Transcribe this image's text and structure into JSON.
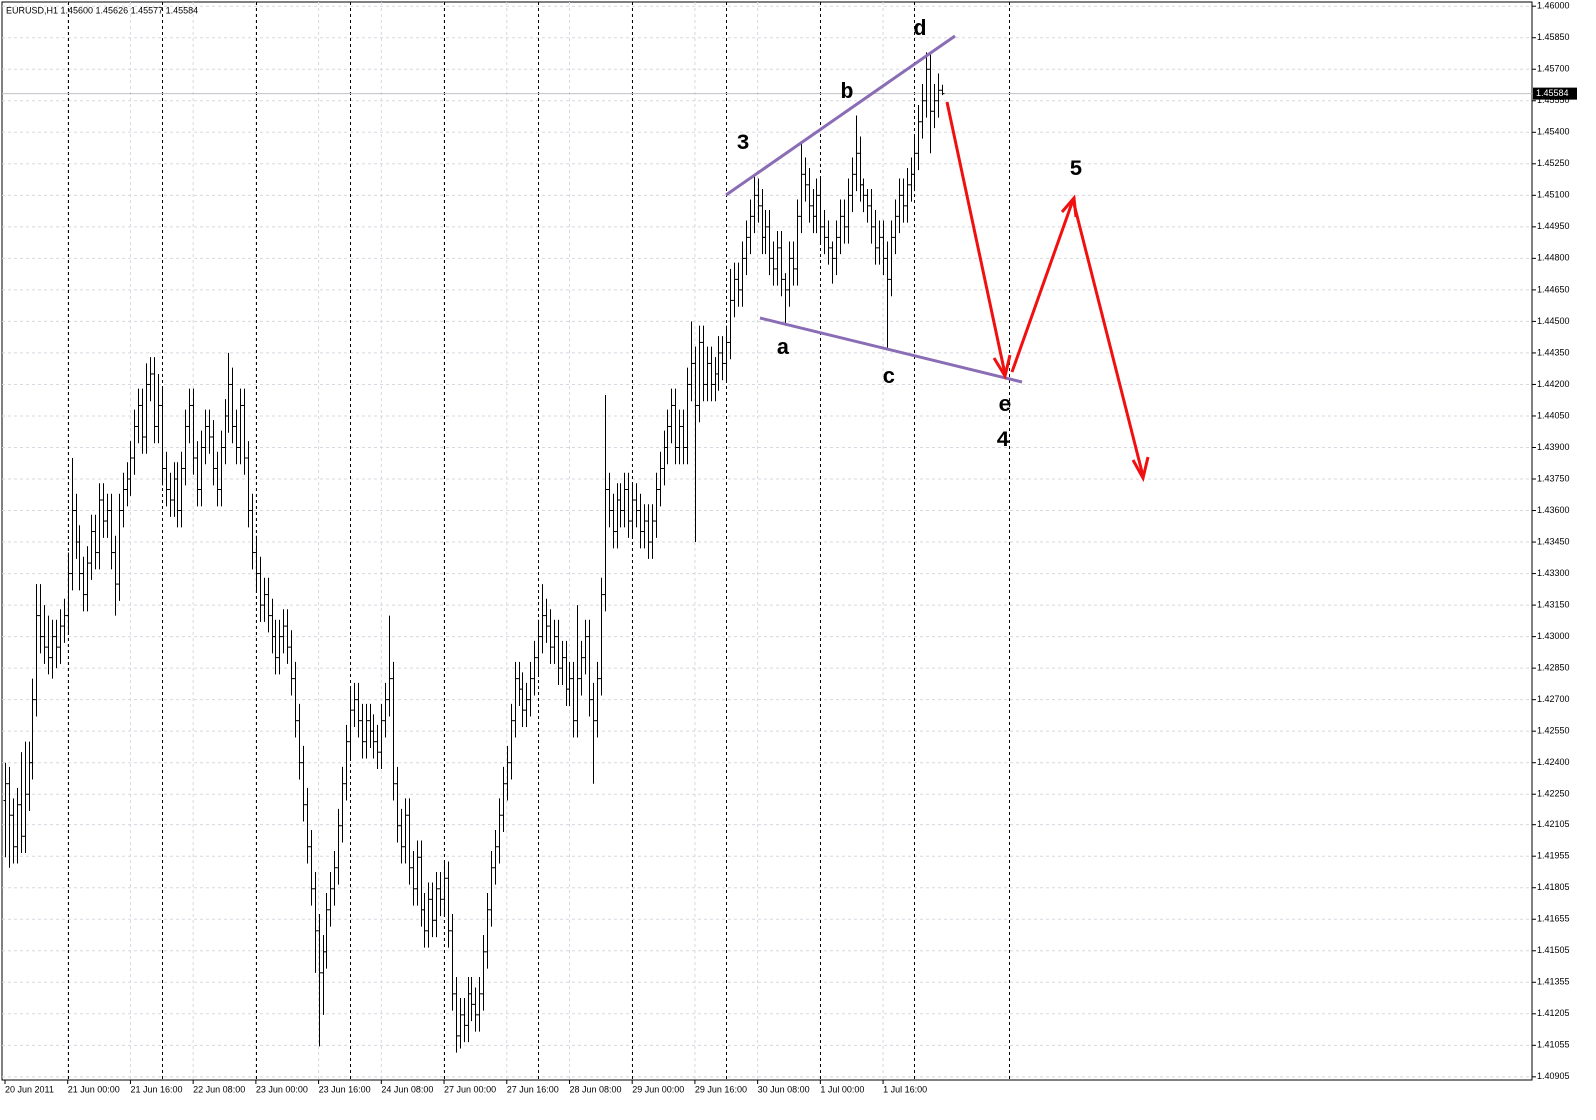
{
  "chart_data": {
    "type": "ohlc",
    "title": "EURUSD,H1  1.45600 1.45626 1.45577 1.45584",
    "color": "#000000",
    "open": [
      1.4222,
      1.423,
      1.4215,
      1.42,
      1.422,
      1.4205,
      1.4225,
      1.424,
      1.427,
      1.431,
      1.43,
      1.4295,
      1.429,
      1.43,
      1.4295,
      1.4305,
      1.431,
      1.433,
      1.436,
      1.4345,
      1.433,
      1.432,
      1.4335,
      1.435,
      1.434,
      1.4365,
      1.4355,
      1.436,
      1.434,
      1.4325,
      1.436,
      1.437,
      1.4375,
      1.4385,
      1.44,
      1.441,
      1.4395,
      1.442,
      1.4425,
      1.44,
      1.441,
      1.438,
      1.437,
      1.4365,
      1.4375,
      1.436,
      1.438,
      1.44,
      1.441,
      1.4385,
      1.437,
      1.439,
      1.44,
      1.4395,
      1.438,
      1.437,
      1.439,
      1.4405,
      1.442,
      1.44,
      1.439,
      1.441,
      1.4385,
      1.436,
      1.434,
      1.433,
      1.4315,
      1.432,
      1.431,
      1.43,
      1.429,
      1.43,
      1.4305,
      1.4295,
      1.428,
      1.426,
      1.424,
      1.422,
      1.42,
      1.418,
      1.416,
      1.414,
      1.415,
      1.417,
      1.418,
      1.419,
      1.421,
      1.423,
      1.425,
      1.4265,
      1.427,
      1.426,
      1.425,
      1.426,
      1.4255,
      1.425,
      1.4245,
      1.426,
      1.427,
      1.428,
      1.423,
      1.421,
      1.42,
      1.4215,
      1.419,
      1.418,
      1.4195,
      1.417,
      1.416,
      1.4175,
      1.4165,
      1.418,
      1.4175,
      1.4185,
      1.416,
      1.413,
      1.411,
      1.412,
      1.4115,
      1.413,
      1.4125,
      1.412,
      1.413,
      1.415,
      1.417,
      1.419,
      1.42,
      1.4215,
      1.423,
      1.424,
      1.426,
      1.428,
      1.4275,
      1.4265,
      1.427,
      1.428,
      1.429,
      1.43,
      1.431,
      1.4305,
      1.4295,
      1.43,
      1.4285,
      1.429,
      1.4275,
      1.428,
      1.426,
      1.428,
      1.429,
      1.43,
      1.427,
      1.426,
      1.428,
      1.432,
      1.437,
      1.436,
      1.435,
      1.4365,
      1.436,
      1.437,
      1.4355,
      1.4365,
      1.436,
      1.435,
      1.4355,
      1.4345,
      1.4355,
      1.437,
      1.438,
      1.439,
      1.44,
      1.441,
      1.439,
      1.44,
      1.439,
      1.442,
      1.443,
      1.441,
      1.444,
      1.442,
      1.443,
      1.442,
      1.4425,
      1.4435,
      1.443,
      1.444,
      1.446,
      1.447,
      1.4465,
      1.448,
      1.449,
      1.45,
      1.451,
      1.4505,
      1.449,
      1.4495,
      1.448,
      1.4475,
      1.4485,
      1.447,
      1.4465,
      1.448,
      1.4475,
      1.45,
      1.452,
      1.4515,
      1.4505,
      1.45,
      1.451,
      1.4495,
      1.449,
      1.4485,
      1.448,
      1.449,
      1.45,
      1.4495,
      1.451,
      1.452,
      1.453,
      1.4515,
      1.451,
      1.4505,
      1.4495,
      1.4485,
      1.449,
      1.448,
      1.447,
      1.449,
      1.45,
      1.451,
      1.4505,
      1.4515,
      1.452,
      1.453,
      1.4545,
      1.4555,
      1.457,
      1.455,
      1.4555,
      1.456
    ],
    "high": [
      1.424,
      1.4238,
      1.4223,
      1.4228,
      1.4245,
      1.425,
      1.425,
      1.428,
      1.4325,
      1.4325,
      1.4315,
      1.431,
      1.4308,
      1.4308,
      1.4313,
      1.4318,
      1.434,
      1.4385,
      1.4368,
      1.4353,
      1.4338,
      1.4343,
      1.4358,
      1.4358,
      1.4373,
      1.4373,
      1.4368,
      1.4368,
      1.4348,
      1.4368,
      1.4378,
      1.4383,
      1.4393,
      1.4408,
      1.4418,
      1.4418,
      1.443,
      1.4433,
      1.4433,
      1.4425,
      1.4418,
      1.4388,
      1.4378,
      1.4383,
      1.4383,
      1.4388,
      1.4408,
      1.4418,
      1.4418,
      1.4393,
      1.4398,
      1.4408,
      1.4408,
      1.4403,
      1.4388,
      1.4398,
      1.4413,
      1.4435,
      1.4428,
      1.4408,
      1.4418,
      1.4418,
      1.4393,
      1.4368,
      1.4348,
      1.4338,
      1.4328,
      1.4328,
      1.4318,
      1.4308,
      1.4308,
      1.4313,
      1.4313,
      1.4303,
      1.4288,
      1.4268,
      1.4248,
      1.4228,
      1.4208,
      1.4188,
      1.4168,
      1.4158,
      1.4178,
      1.4188,
      1.4198,
      1.4218,
      1.4238,
      1.4258,
      1.4275,
      1.4278,
      1.4278,
      1.4268,
      1.4268,
      1.4268,
      1.4263,
      1.4258,
      1.4268,
      1.4278,
      1.431,
      1.4288,
      1.4238,
      1.4218,
      1.4223,
      1.4223,
      1.4198,
      1.4203,
      1.4203,
      1.4178,
      1.4183,
      1.4183,
      1.4188,
      1.4188,
      1.4193,
      1.4193,
      1.4168,
      1.4138,
      1.4128,
      1.4128,
      1.4138,
      1.4138,
      1.4133,
      1.4138,
      1.4158,
      1.4178,
      1.4198,
      1.4208,
      1.4223,
      1.4238,
      1.4248,
      1.4268,
      1.4288,
      1.4288,
      1.4283,
      1.4278,
      1.4288,
      1.4298,
      1.4308,
      1.4325,
      1.4318,
      1.4313,
      1.4308,
      1.4308,
      1.4298,
      1.4298,
      1.4288,
      1.4288,
      1.4315,
      1.4298,
      1.4308,
      1.4308,
      1.4278,
      1.4288,
      1.4328,
      1.4415,
      1.4378,
      1.4368,
      1.4373,
      1.4373,
      1.4378,
      1.4378,
      1.4373,
      1.4373,
      1.4368,
      1.4363,
      1.4363,
      1.4363,
      1.4378,
      1.4388,
      1.4398,
      1.4408,
      1.4418,
      1.4418,
      1.4408,
      1.4408,
      1.4428,
      1.445,
      1.4438,
      1.4448,
      1.4448,
      1.4438,
      1.4438,
      1.4433,
      1.4443,
      1.4443,
      1.4448,
      1.4475,
      1.4478,
      1.4478,
      1.4488,
      1.4498,
      1.4508,
      1.452,
      1.4518,
      1.4513,
      1.4503,
      1.4503,
      1.4488,
      1.4493,
      1.4493,
      1.4473,
      1.4488,
      1.4488,
      1.4508,
      1.4535,
      1.4528,
      1.4523,
      1.4513,
      1.4518,
      1.4518,
      1.4503,
      1.4498,
      1.4488,
      1.4498,
      1.4508,
      1.4508,
      1.4518,
      1.4528,
      1.4548,
      1.4538,
      1.4518,
      1.4513,
      1.4513,
      1.4503,
      1.4498,
      1.4498,
      1.4488,
      1.4498,
      1.4508,
      1.4518,
      1.4518,
      1.4523,
      1.4528,
      1.4538,
      1.4553,
      1.4563,
      1.4578,
      1.4578,
      1.4563,
      1.4568,
      1.45626
    ],
    "low": [
      1.4195,
      1.419,
      1.4192,
      1.4192,
      1.4197,
      1.4197,
      1.4217,
      1.4232,
      1.4262,
      1.4292,
      1.4287,
      1.4282,
      1.428,
      1.4285,
      1.4287,
      1.4297,
      1.4302,
      1.4322,
      1.4337,
      1.4322,
      1.4312,
      1.4312,
      1.4327,
      1.4332,
      1.4332,
      1.4347,
      1.4347,
      1.4332,
      1.431,
      1.4317,
      1.4352,
      1.4362,
      1.4367,
      1.4377,
      1.4392,
      1.4387,
      1.4387,
      1.4412,
      1.4392,
      1.4392,
      1.4372,
      1.4362,
      1.4357,
      1.4357,
      1.4352,
      1.4352,
      1.4372,
      1.4392,
      1.4377,
      1.4362,
      1.4362,
      1.4382,
      1.4387,
      1.4372,
      1.4362,
      1.4362,
      1.4382,
      1.4397,
      1.4392,
      1.4382,
      1.4382,
      1.4377,
      1.4352,
      1.4332,
      1.4322,
      1.4307,
      1.4307,
      1.4302,
      1.4292,
      1.4282,
      1.4282,
      1.4292,
      1.4287,
      1.4272,
      1.4252,
      1.4232,
      1.4212,
      1.4192,
      1.4172,
      1.414,
      1.4105,
      1.412,
      1.4142,
      1.4162,
      1.4172,
      1.4182,
      1.4202,
      1.4222,
      1.4242,
      1.4257,
      1.4252,
      1.4242,
      1.4242,
      1.4247,
      1.4242,
      1.4237,
      1.4237,
      1.4252,
      1.4262,
      1.4222,
      1.4202,
      1.4192,
      1.4192,
      1.4182,
      1.4172,
      1.4172,
      1.4162,
      1.4152,
      1.4152,
      1.4157,
      1.4157,
      1.4167,
      1.4167,
      1.4152,
      1.4122,
      1.4102,
      1.4104,
      1.4107,
      1.4107,
      1.4117,
      1.4112,
      1.4112,
      1.4122,
      1.4142,
      1.4162,
      1.4182,
      1.4192,
      1.4207,
      1.4222,
      1.4232,
      1.4252,
      1.4267,
      1.4257,
      1.4257,
      1.4262,
      1.4272,
      1.4282,
      1.4292,
      1.4297,
      1.4287,
      1.4287,
      1.4277,
      1.4277,
      1.4267,
      1.4267,
      1.4252,
      1.4252,
      1.4272,
      1.4282,
      1.4262,
      1.423,
      1.4252,
      1.4272,
      1.4312,
      1.4352,
      1.4342,
      1.4342,
      1.4352,
      1.4352,
      1.4347,
      1.4347,
      1.4352,
      1.4342,
      1.4342,
      1.4337,
      1.4337,
      1.4347,
      1.4362,
      1.4372,
      1.4382,
      1.4392,
      1.4382,
      1.4382,
      1.4382,
      1.4382,
      1.4412,
      1.4345,
      1.4402,
      1.4412,
      1.4412,
      1.4412,
      1.4412,
      1.4417,
      1.4422,
      1.4422,
      1.4432,
      1.4452,
      1.4457,
      1.4457,
      1.4472,
      1.4482,
      1.4492,
      1.4497,
      1.4482,
      1.4482,
      1.4472,
      1.4467,
      1.4467,
      1.4462,
      1.4448,
      1.4457,
      1.4467,
      1.4467,
      1.4492,
      1.4507,
      1.4497,
      1.4492,
      1.4492,
      1.4487,
      1.4482,
      1.4477,
      1.4468,
      1.4472,
      1.4482,
      1.4487,
      1.4487,
      1.4502,
      1.4512,
      1.4507,
      1.4502,
      1.4497,
      1.4487,
      1.4477,
      1.4477,
      1.4472,
      1.4437,
      1.4462,
      1.4482,
      1.4492,
      1.4497,
      1.4497,
      1.4507,
      1.4512,
      1.4522,
      1.4537,
      1.4547,
      1.453,
      1.4542,
      1.4547,
      1.45577
    ],
    "close": [
      1.423,
      1.4215,
      1.42,
      1.422,
      1.4205,
      1.4225,
      1.424,
      1.427,
      1.431,
      1.43,
      1.4295,
      1.429,
      1.43,
      1.4295,
      1.4305,
      1.431,
      1.433,
      1.436,
      1.4345,
      1.433,
      1.432,
      1.4335,
      1.435,
      1.434,
      1.4365,
      1.4355,
      1.436,
      1.434,
      1.4325,
      1.436,
      1.437,
      1.4375,
      1.4385,
      1.44,
      1.441,
      1.4395,
      1.442,
      1.4425,
      1.44,
      1.441,
      1.438,
      1.437,
      1.4365,
      1.4375,
      1.436,
      1.438,
      1.44,
      1.441,
      1.4385,
      1.437,
      1.439,
      1.44,
      1.4395,
      1.438,
      1.437,
      1.439,
      1.4405,
      1.442,
      1.44,
      1.439,
      1.441,
      1.4385,
      1.436,
      1.434,
      1.433,
      1.4315,
      1.432,
      1.431,
      1.43,
      1.429,
      1.43,
      1.4305,
      1.4295,
      1.428,
      1.426,
      1.424,
      1.422,
      1.42,
      1.418,
      1.416,
      1.414,
      1.415,
      1.417,
      1.418,
      1.419,
      1.421,
      1.423,
      1.425,
      1.4265,
      1.427,
      1.426,
      1.425,
      1.426,
      1.4255,
      1.425,
      1.4245,
      1.426,
      1.427,
      1.428,
      1.423,
      1.421,
      1.42,
      1.4215,
      1.419,
      1.418,
      1.4195,
      1.417,
      1.416,
      1.4175,
      1.4165,
      1.418,
      1.4175,
      1.4185,
      1.416,
      1.413,
      1.411,
      1.412,
      1.4115,
      1.413,
      1.4125,
      1.412,
      1.413,
      1.415,
      1.417,
      1.419,
      1.42,
      1.4215,
      1.423,
      1.424,
      1.426,
      1.428,
      1.4275,
      1.4265,
      1.427,
      1.428,
      1.429,
      1.43,
      1.431,
      1.4305,
      1.4295,
      1.43,
      1.4285,
      1.429,
      1.4275,
      1.428,
      1.426,
      1.428,
      1.429,
      1.43,
      1.427,
      1.426,
      1.428,
      1.432,
      1.437,
      1.436,
      1.435,
      1.4365,
      1.436,
      1.437,
      1.4355,
      1.4365,
      1.436,
      1.435,
      1.4355,
      1.4345,
      1.4355,
      1.437,
      1.438,
      1.439,
      1.44,
      1.441,
      1.439,
      1.44,
      1.439,
      1.442,
      1.443,
      1.441,
      1.444,
      1.442,
      1.443,
      1.442,
      1.4425,
      1.4435,
      1.443,
      1.444,
      1.446,
      1.447,
      1.4465,
      1.448,
      1.449,
      1.45,
      1.451,
      1.4505,
      1.449,
      1.4495,
      1.448,
      1.4475,
      1.4485,
      1.447,
      1.4465,
      1.448,
      1.4475,
      1.45,
      1.452,
      1.4515,
      1.4505,
      1.45,
      1.451,
      1.4495,
      1.449,
      1.4485,
      1.448,
      1.449,
      1.45,
      1.4495,
      1.451,
      1.452,
      1.453,
      1.4515,
      1.451,
      1.4505,
      1.4495,
      1.4485,
      1.449,
      1.448,
      1.447,
      1.449,
      1.45,
      1.451,
      1.4505,
      1.4515,
      1.452,
      1.453,
      1.4545,
      1.4555,
      1.457,
      1.455,
      1.4555,
      1.456,
      1.45584
    ],
    "x_labels": [
      "20 Jun 2011",
      "21 Jun 00:00",
      "21 Jun 16:00",
      "22 Jun 08:00",
      "23 Jun 00:00",
      "23 Jun 16:00",
      "24 Jun 08:00",
      "27 Jun 00:00",
      "27 Jun 16:00",
      "28 Jun 08:00",
      "29 Jun 00:00",
      "29 Jun 16:00",
      "30 Jun 08:00",
      "1 Jul 00:00",
      "1 Jul 16:00"
    ],
    "ylim": [
      1.4089,
      1.4602
    ],
    "yticks": [
      {
        "value": 1.46,
        "label": "1.46000"
      },
      {
        "value": 1.4585,
        "label": "1.45850"
      },
      {
        "value": 1.457,
        "label": "1.45700"
      },
      {
        "value": 1.4555,
        "label": "1.45550"
      },
      {
        "value": 1.454,
        "label": "1.45400"
      },
      {
        "value": 1.4525,
        "label": "1.45250"
      },
      {
        "value": 1.451,
        "label": "1.45100"
      },
      {
        "value": 1.4495,
        "label": "1.44950"
      },
      {
        "value": 1.448,
        "label": "1.44800"
      },
      {
        "value": 1.4465,
        "label": "1.44650"
      },
      {
        "value": 1.445,
        "label": "1.44500"
      },
      {
        "value": 1.4435,
        "label": "1.44350"
      },
      {
        "value": 1.442,
        "label": "1.44200"
      },
      {
        "value": 1.4405,
        "label": "1.44050"
      },
      {
        "value": 1.439,
        "label": "1.43900"
      },
      {
        "value": 1.4375,
        "label": "1.43750"
      },
      {
        "value": 1.436,
        "label": "1.43600"
      },
      {
        "value": 1.4345,
        "label": "1.43450"
      },
      {
        "value": 1.433,
        "label": "1.43300"
      },
      {
        "value": 1.4315,
        "label": "1.43150"
      },
      {
        "value": 1.43,
        "label": "1.43000"
      },
      {
        "value": 1.4285,
        "label": "1.42850"
      },
      {
        "value": 1.427,
        "label": "1.42700"
      },
      {
        "value": 1.4255,
        "label": "1.42550"
      },
      {
        "value": 1.424,
        "label": "1.42400"
      },
      {
        "value": 1.4225,
        "label": "1.42250"
      },
      {
        "value": 1.42105,
        "label": "1.42105"
      },
      {
        "value": 1.41955,
        "label": "1.41955"
      },
      {
        "value": 1.41805,
        "label": "1.41805"
      },
      {
        "value": 1.41655,
        "label": "1.41655"
      },
      {
        "value": 1.41505,
        "label": "1.41505"
      },
      {
        "value": 1.41355,
        "label": "1.41355"
      },
      {
        "value": 1.41205,
        "label": "1.41205"
      },
      {
        "value": 1.41055,
        "label": "1.41055"
      },
      {
        "value": 1.40905,
        "label": "1.40905"
      }
    ],
    "grid": true,
    "last_price": {
      "value": 1.45584,
      "label": "1.45584"
    },
    "annotations": [
      "3",
      "a",
      "b",
      "c",
      "d",
      "e",
      "4",
      "5"
    ]
  }
}
